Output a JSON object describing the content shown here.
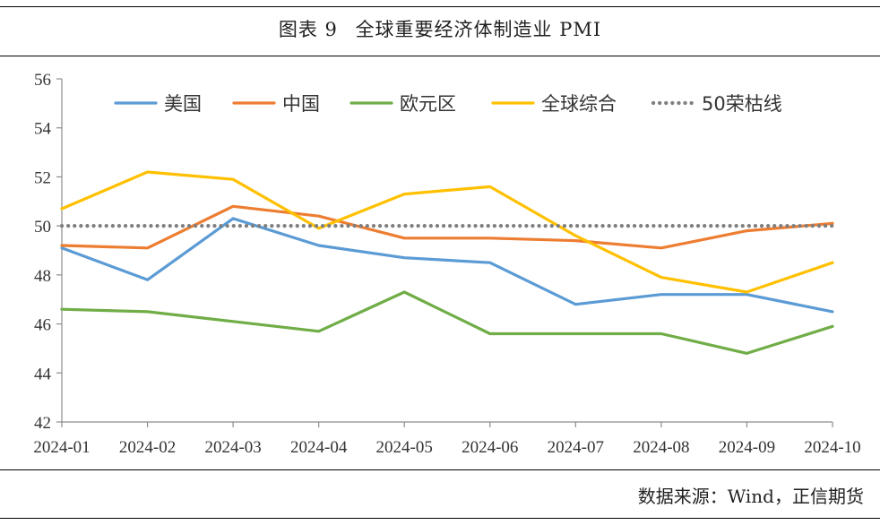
{
  "figure": {
    "label": "图表 9",
    "title": "全球重要经济体制造业 PMI",
    "source": "数据来源：Wind，正信期货"
  },
  "colors": {
    "us": "#5b9bd5",
    "china": "#ed7d31",
    "eurozone": "#70ad47",
    "global": "#ffc000",
    "threshold": "#7f7f7f"
  },
  "chart_data": {
    "type": "line",
    "x": [
      "2024-01",
      "2024-02",
      "2024-03",
      "2024-04",
      "2024-05",
      "2024-06",
      "2024-07",
      "2024-08",
      "2024-09",
      "2024-10"
    ],
    "ylim": [
      42,
      56
    ],
    "yticks": [
      42,
      44,
      46,
      48,
      50,
      52,
      54,
      56
    ],
    "grid": false,
    "legend": "top",
    "series": [
      {
        "key": "us",
        "name": "美国",
        "style": "solid",
        "values": [
          49.1,
          47.8,
          50.3,
          49.2,
          48.7,
          48.5,
          46.8,
          47.2,
          47.2,
          46.5
        ]
      },
      {
        "key": "china",
        "name": "中国",
        "style": "solid",
        "values": [
          49.2,
          49.1,
          50.8,
          50.4,
          49.5,
          49.5,
          49.4,
          49.1,
          49.8,
          50.1
        ]
      },
      {
        "key": "eurozone",
        "name": "欧元区",
        "style": "solid",
        "values": [
          46.6,
          46.5,
          46.1,
          45.7,
          47.3,
          45.6,
          45.6,
          45.6,
          44.8,
          45.9
        ]
      },
      {
        "key": "global",
        "name": "全球综合",
        "style": "solid",
        "values": [
          50.7,
          52.2,
          51.9,
          49.9,
          51.3,
          51.6,
          49.6,
          47.9,
          47.3,
          48.5
        ]
      },
      {
        "key": "threshold",
        "name": "50荣枯线",
        "style": "dotted",
        "values": [
          50,
          50,
          50,
          50,
          50,
          50,
          50,
          50,
          50,
          50
        ]
      }
    ]
  }
}
